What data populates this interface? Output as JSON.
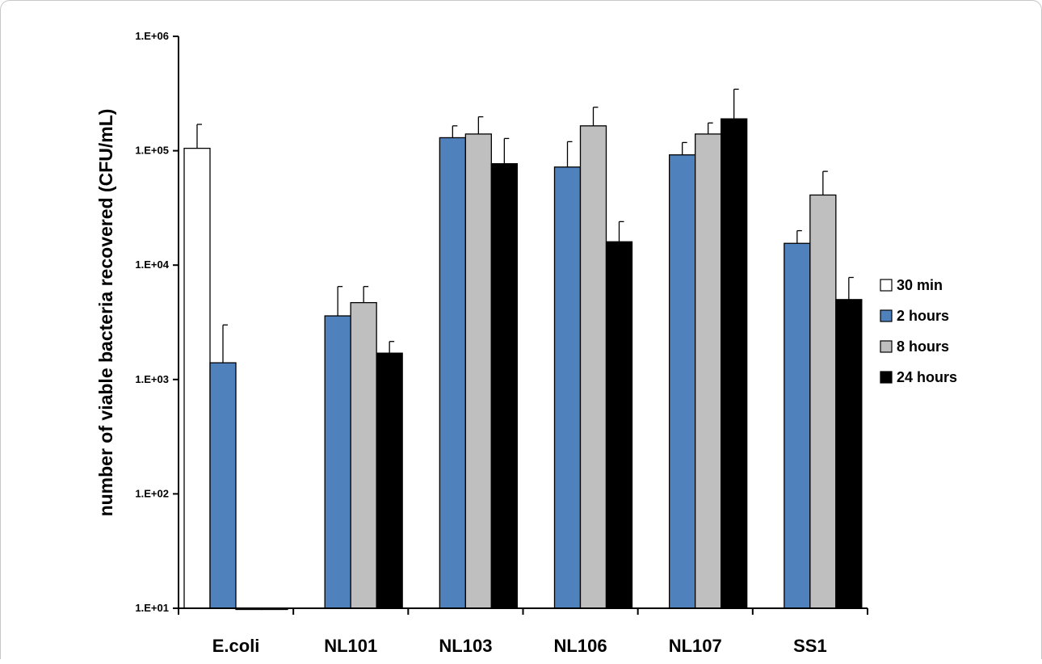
{
  "chart_data": {
    "type": "bar",
    "title": "",
    "xlabel": "",
    "ylabel": "number of viable bacteria recovered (CFU/mL)",
    "yscale": "log",
    "ylim": [
      10,
      1000000
    ],
    "yticks": [
      10,
      100,
      1000,
      10000,
      100000,
      1000000
    ],
    "ytick_labels": [
      "1.E+01",
      "1.E+02",
      "1.E+03",
      "1.E+04",
      "1.E+05",
      "1.E+06"
    ],
    "categories": [
      "E.coli",
      "NL101",
      "NL103",
      "NL106",
      "NL107",
      "SS1"
    ],
    "legend_position": "right",
    "grid": false,
    "series": [
      {
        "name": "30 min",
        "color": "#ffffff",
        "values": [
          105000,
          null,
          null,
          null,
          null,
          null
        ],
        "errors": [
          170000,
          null,
          null,
          null,
          null,
          null
        ]
      },
      {
        "name": "2 hours",
        "color": "#4f81bd",
        "values": [
          1400,
          3600,
          130000,
          72000,
          92000,
          15500
        ],
        "errors": [
          3000,
          6500,
          165000,
          120000,
          118000,
          20000
        ]
      },
      {
        "name": "8 hours",
        "color": "#bfbfbf",
        "values": [
          10,
          4700,
          140000,
          165000,
          140000,
          41000
        ],
        "errors": [
          null,
          6500,
          198000,
          240000,
          175000,
          66000
        ]
      },
      {
        "name": "24 hours",
        "color": "#000000",
        "values": [
          10,
          1700,
          77000,
          16000,
          190000,
          5000
        ],
        "errors": [
          null,
          2150,
          128000,
          24000,
          345000,
          7800
        ]
      }
    ]
  }
}
